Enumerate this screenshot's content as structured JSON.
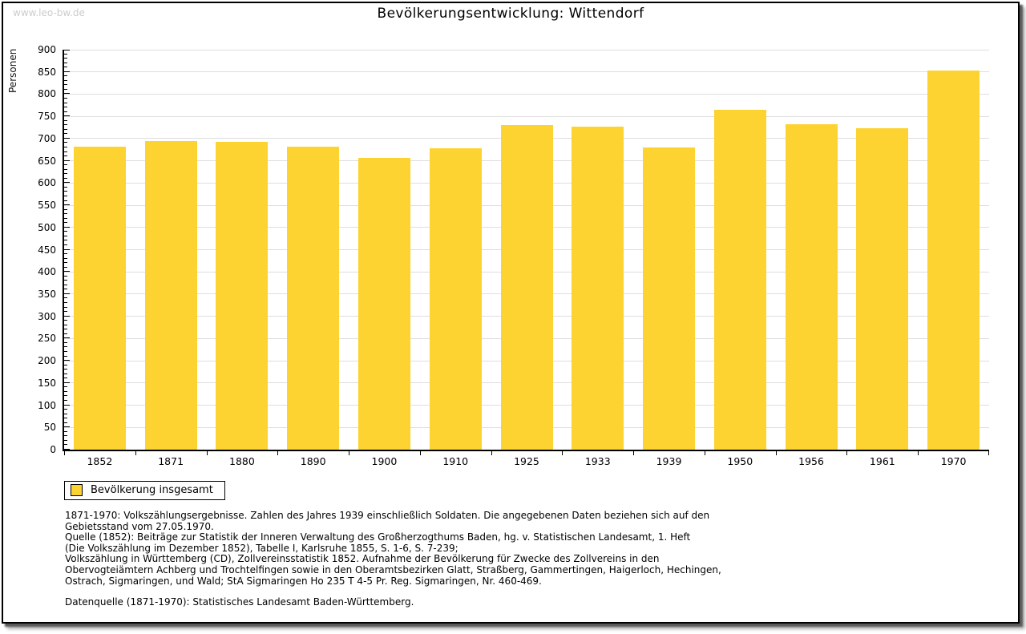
{
  "watermark": "www.leo-bw.de",
  "title": "Bevölkerungsentwicklung: Wittendorf",
  "chart_data": {
    "type": "bar",
    "title": "Bevölkerungsentwicklung: Wittendorf",
    "ylabel": "Personen",
    "xlabel": "",
    "ylim": [
      0,
      900
    ],
    "ytick_step": 50,
    "minor_tick_step": 10,
    "grid": true,
    "legend_position": "bottom-left",
    "categories": [
      "1852",
      "1871",
      "1880",
      "1890",
      "1900",
      "1910",
      "1925",
      "1933",
      "1939",
      "1950",
      "1956",
      "1961",
      "1970"
    ],
    "series": [
      {
        "name": "Bevölkerung insgesamt",
        "values": [
          682,
          695,
          693,
          682,
          657,
          679,
          731,
          726,
          680,
          765,
          733,
          723,
          853
        ]
      }
    ],
    "bar_color": "#FCD330",
    "grid_color": "#DEDEDE",
    "axis_color": "#000000"
  },
  "legend": {
    "label": "Bevölkerung insgesamt",
    "swatch_color": "#FCD330"
  },
  "footer": {
    "lines": [
      "1871-1970: Volkszählungsergebnisse. Zahlen des Jahres 1939 einschließlich Soldaten. Die angegebenen Daten beziehen sich auf den",
      "Gebietsstand vom 27.05.1970.",
      "Quelle (1852): Beiträge zur Statistik der Inneren Verwaltung des Großherzogthums Baden, hg. v. Statistischen Landesamt, 1. Heft",
      "(Die Volkszählung im Dezember 1852), Tabelle I, Karlsruhe 1855, S. 1-6, S. 7-239;",
      "Volkszählung in Württemberg (CD), Zollvereinsstatistik 1852. Aufnahme der Bevölkerung für Zwecke des Zollvereins in den",
      "Obervogteiämtern Achberg und Trochtelfingen sowie in den Oberamtsbezirken Glatt, Straßberg, Gammertingen, Haigerloch, Hechingen,",
      "Ostrach, Sigmaringen, und Wald; StA Sigmaringen Ho 235 T 4-5 Pr. Reg. Sigmaringen, Nr. 460-469."
    ],
    "datasource": "Datenquelle (1871-1970): Statistisches Landesamt Baden-Württemberg."
  }
}
